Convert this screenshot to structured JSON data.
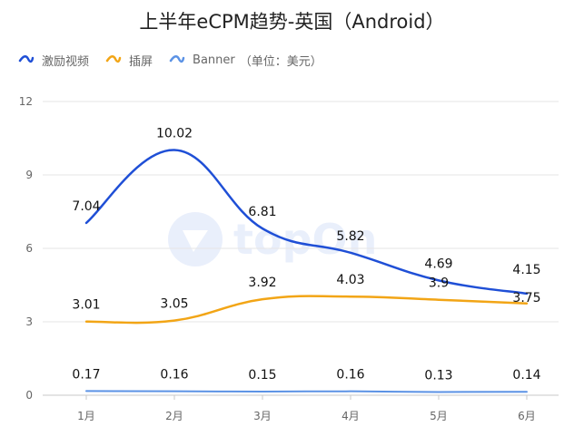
{
  "chart_data": {
    "type": "line",
    "title": "上半年eCPM趋势-英国（Android）",
    "categories": [
      "1月",
      "2月",
      "3月",
      "4月",
      "5月",
      "6月"
    ],
    "series": [
      {
        "name": "激励视频",
        "color": "#1f4fd6",
        "values": [
          7.04,
          10.02,
          6.81,
          5.82,
          4.69,
          4.15
        ]
      },
      {
        "name": "插屏",
        "color": "#f2a516",
        "values": [
          3.01,
          3.05,
          3.92,
          4.03,
          3.9,
          3.75
        ]
      },
      {
        "name": "Banner",
        "color": "#5b92e5",
        "values": [
          0.17,
          0.16,
          0.15,
          0.16,
          0.13,
          0.14
        ]
      }
    ],
    "legend_note": "（单位：美元）",
    "ylim": [
      0,
      12
    ],
    "yticks": [
      0,
      3,
      6,
      9,
      12
    ],
    "grid": true,
    "legend_position": "top-left",
    "smooth": true
  },
  "watermark": {
    "text": "topOn",
    "icon": "logo-icon"
  }
}
